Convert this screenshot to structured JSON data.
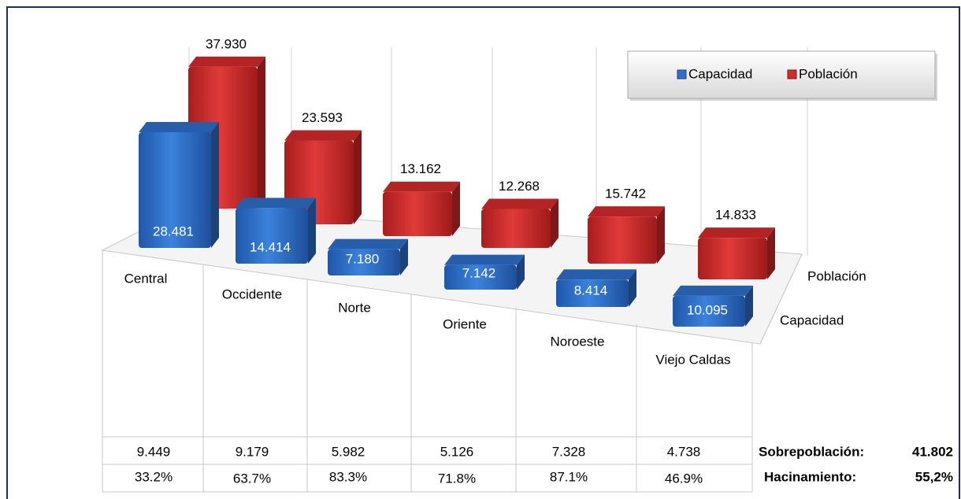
{
  "chart_data": {
    "type": "bar3d",
    "categories": [
      "Central",
      "Occidente",
      "Norte",
      "Oriente",
      "Noroeste",
      "Viejo Caldas"
    ],
    "series": [
      {
        "name": "Capacidad",
        "color": "#2e6fc9",
        "values": [
          28481,
          14414,
          7180,
          7142,
          8414,
          10095
        ],
        "value_labels": [
          "28.481",
          "14.414",
          "7.180",
          "7.142",
          "8.414",
          "10.095"
        ]
      },
      {
        "name": "Población",
        "color": "#d42a2a",
        "values": [
          37930,
          23593,
          13162,
          12268,
          15742,
          14833
        ],
        "value_labels": [
          "37.930",
          "23.593",
          "13.162",
          "12.268",
          "15.742",
          "14.833"
        ]
      }
    ],
    "legend": "top-right",
    "table_rows": [
      {
        "label": "Sobrepoblación:",
        "total": "41.802",
        "cells": [
          "9.449",
          "9.179",
          "5.982",
          "5.126",
          "7.328",
          "4.738"
        ]
      },
      {
        "label": "Hacinamiento:",
        "total": "55,2%",
        "cells": [
          "33.2%",
          "63.7%",
          "83.3%",
          "71.8%",
          "87.1%",
          "46.9%"
        ]
      }
    ]
  }
}
